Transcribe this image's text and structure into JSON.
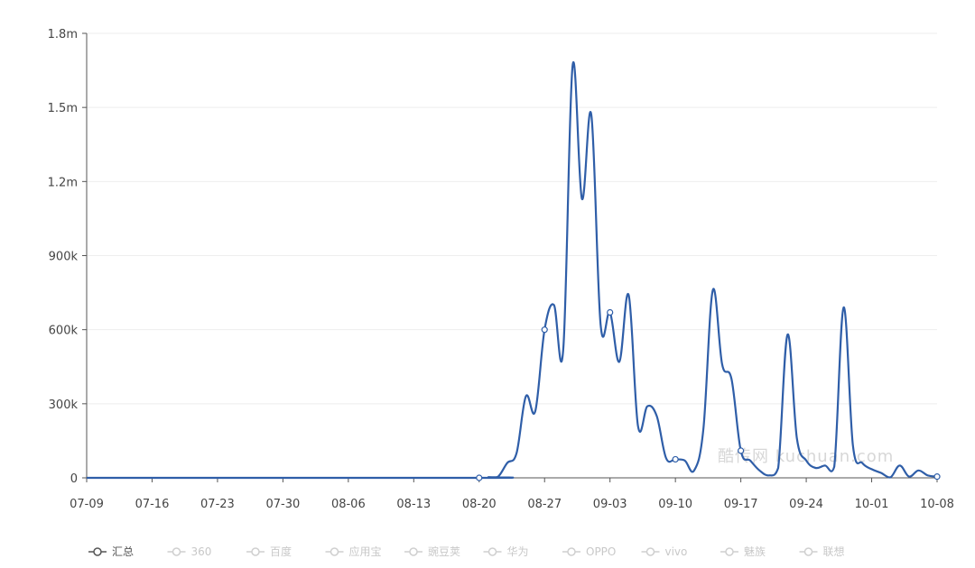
{
  "chart_data": {
    "type": "line",
    "x_ticks": [
      "07-09",
      "07-16",
      "07-23",
      "07-30",
      "08-06",
      "08-13",
      "08-20",
      "08-27",
      "09-03",
      "09-10",
      "09-17",
      "09-24",
      "10-01",
      "10-08"
    ],
    "y_ticks": [
      "0",
      "300k",
      "600k",
      "900k",
      "1.2m",
      "1.5m",
      "1.8m"
    ],
    "ylim": [
      0,
      1800000
    ],
    "x_range": [
      "2018-07-09",
      "2018-10-08"
    ],
    "grid": "horizontal",
    "legend_position": "bottom",
    "series": [
      {
        "name": "汇总",
        "color": "#2f5ea8",
        "points": [
          [
            "2018-07-09",
            0
          ],
          [
            "2018-08-20",
            0
          ],
          [
            "2018-08-21",
            3000
          ],
          [
            "2018-08-22",
            4000
          ],
          [
            "2018-08-23",
            60000
          ],
          [
            "2018-08-24",
            100000
          ],
          [
            "2018-08-25",
            330000
          ],
          [
            "2018-08-26",
            270000
          ],
          [
            "2018-08-27",
            600000
          ],
          [
            "2018-08-28",
            700000
          ],
          [
            "2018-08-29",
            520000
          ],
          [
            "2018-08-30",
            1670000
          ],
          [
            "2018-08-31",
            1130000
          ],
          [
            "2018-09-01",
            1470000
          ],
          [
            "2018-09-02",
            620000
          ],
          [
            "2018-09-03",
            670000
          ],
          [
            "2018-09-04",
            470000
          ],
          [
            "2018-09-05",
            740000
          ],
          [
            "2018-09-06",
            210000
          ],
          [
            "2018-09-07",
            290000
          ],
          [
            "2018-09-08",
            250000
          ],
          [
            "2018-09-09",
            80000
          ],
          [
            "2018-09-10",
            75000
          ],
          [
            "2018-09-11",
            70000
          ],
          [
            "2018-09-12",
            30000
          ],
          [
            "2018-09-13",
            200000
          ],
          [
            "2018-09-14",
            760000
          ],
          [
            "2018-09-15",
            460000
          ],
          [
            "2018-09-16",
            400000
          ],
          [
            "2018-09-17",
            110000
          ],
          [
            "2018-09-18",
            70000
          ],
          [
            "2018-09-19",
            30000
          ],
          [
            "2018-09-20",
            10000
          ],
          [
            "2018-09-21",
            40000
          ],
          [
            "2018-09-22",
            580000
          ],
          [
            "2018-09-23",
            160000
          ],
          [
            "2018-09-24",
            70000
          ],
          [
            "2018-09-25",
            40000
          ],
          [
            "2018-09-26",
            50000
          ],
          [
            "2018-09-27",
            45000
          ],
          [
            "2018-09-28",
            690000
          ],
          [
            "2018-09-29",
            130000
          ],
          [
            "2018-09-30",
            60000
          ],
          [
            "2018-10-01",
            35000
          ],
          [
            "2018-10-02",
            20000
          ],
          [
            "2018-10-03",
            2000
          ],
          [
            "2018-10-04",
            50000
          ],
          [
            "2018-10-05",
            5000
          ],
          [
            "2018-10-06",
            30000
          ],
          [
            "2018-10-07",
            10000
          ],
          [
            "2018-10-08",
            5000
          ]
        ],
        "markers": [
          [
            "2018-08-20",
            0
          ],
          [
            "2018-08-27",
            600000
          ],
          [
            "2018-09-03",
            670000
          ],
          [
            "2018-09-10",
            75000
          ],
          [
            "2018-09-17",
            110000
          ],
          [
            "2018-10-08",
            5000
          ]
        ]
      }
    ]
  },
  "legend": {
    "items": [
      {
        "label": "汇总",
        "active": true
      },
      {
        "label": "360",
        "active": false
      },
      {
        "label": "百度",
        "active": false
      },
      {
        "label": "应用宝",
        "active": false
      },
      {
        "label": "豌豆荚",
        "active": false
      },
      {
        "label": "华为",
        "active": false
      },
      {
        "label": "OPPO",
        "active": false
      },
      {
        "label": "vivo",
        "active": false
      },
      {
        "label": "魅族",
        "active": false
      },
      {
        "label": "联想",
        "active": false
      }
    ]
  },
  "watermark": {
    "text": "酷传网 kuchuan.com"
  },
  "colors": {
    "line": "#2f5ea8",
    "axis": "#555555",
    "grid": "#eeeeee",
    "legend_inactive": "#cfcfcf"
  }
}
